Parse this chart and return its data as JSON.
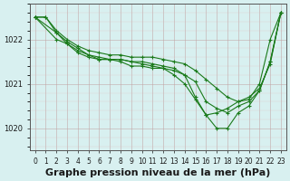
{
  "bg_color": "#d8f0f0",
  "grid_color": "#b0d8d8",
  "line_color": "#1a7a1a",
  "marker_color": "#1a7a1a",
  "xlabel": "Graphe pression niveau de la mer (hPa)",
  "xlabel_fontsize": 8,
  "tick_fontsize": 6,
  "ylim": [
    1019.5,
    1022.8
  ],
  "xlim": [
    -0.5,
    23.5
  ],
  "yticks": [
    1020,
    1021,
    1022
  ],
  "xticks": [
    0,
    1,
    2,
    3,
    4,
    5,
    6,
    7,
    8,
    9,
    10,
    11,
    12,
    13,
    14,
    15,
    16,
    17,
    18,
    19,
    20,
    21,
    22,
    23
  ],
  "series1": {
    "x": [
      0,
      1,
      2,
      3,
      4,
      5,
      6,
      7,
      8,
      9,
      10,
      11,
      12,
      13,
      14,
      15,
      16,
      17,
      18,
      19,
      20,
      21,
      22,
      23
    ],
    "y": [
      1022.5,
      1022.5,
      1022.2,
      1022.0,
      1021.85,
      1021.75,
      1021.7,
      1021.65,
      1021.65,
      1021.6,
      1021.6,
      1021.6,
      1021.55,
      1021.5,
      1021.45,
      1021.3,
      1021.1,
      1020.9,
      1020.7,
      1020.6,
      1020.65,
      1021.0,
      1022.0,
      1022.6
    ]
  },
  "series2": {
    "x": [
      0,
      1,
      2,
      3,
      4,
      5,
      6,
      7,
      8,
      9,
      10,
      11,
      12,
      13,
      14,
      15,
      16,
      17,
      18,
      19,
      20,
      21,
      22,
      23
    ],
    "y": [
      1022.5,
      1022.5,
      1022.15,
      1021.95,
      1021.8,
      1021.65,
      1021.6,
      1021.55,
      1021.55,
      1021.5,
      1021.45,
      1021.4,
      1021.35,
      1021.2,
      1021.0,
      1020.65,
      1020.3,
      1020.0,
      1020.0,
      1020.35,
      1020.5,
      1020.85,
      1021.5,
      1022.6
    ]
  },
  "series3": {
    "x": [
      0,
      2,
      3,
      4,
      5,
      6,
      7,
      8,
      9,
      10,
      11,
      12,
      13,
      14,
      15,
      16,
      17,
      18,
      19,
      20,
      21,
      22,
      23
    ],
    "y": [
      1022.5,
      1022.0,
      1021.9,
      1021.75,
      1021.65,
      1021.55,
      1021.55,
      1021.55,
      1021.5,
      1021.5,
      1021.45,
      1021.4,
      1021.35,
      1021.2,
      1021.05,
      1020.6,
      1020.45,
      1020.35,
      1020.5,
      1020.6,
      1020.85,
      1021.5,
      1022.6
    ]
  },
  "series4": {
    "x": [
      0,
      2,
      3,
      4,
      5,
      6,
      7,
      8,
      9,
      10,
      11,
      12,
      13,
      14,
      15,
      16,
      17,
      18,
      19,
      20,
      21,
      22,
      23
    ],
    "y": [
      1022.5,
      1022.15,
      1021.9,
      1021.7,
      1021.6,
      1021.55,
      1021.55,
      1021.5,
      1021.4,
      1021.4,
      1021.35,
      1021.35,
      1021.3,
      1021.2,
      1020.7,
      1020.3,
      1020.35,
      1020.45,
      1020.6,
      1020.7,
      1020.9,
      1021.45,
      1022.6
    ]
  }
}
